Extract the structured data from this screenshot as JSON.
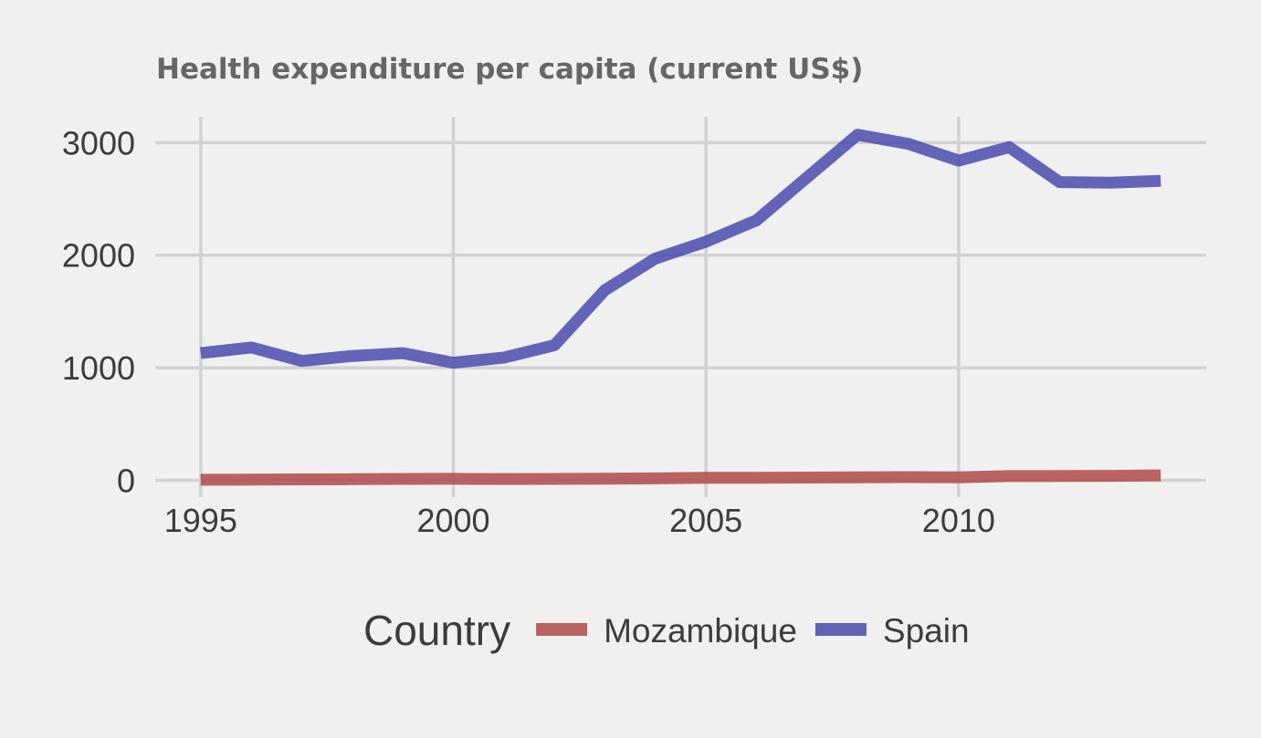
{
  "chart_data": {
    "type": "line",
    "title": "Health expenditure per capita (current US$)",
    "xlabel": "",
    "ylabel": "",
    "x_ticks": [
      1995,
      2000,
      2005,
      2010
    ],
    "y_ticks": [
      0,
      1000,
      2000,
      3000
    ],
    "xlim": [
      1994.1,
      2014.9
    ],
    "ylim": [
      -150,
      3230
    ],
    "grid": true,
    "legend": {
      "title": "Country",
      "position": "bottom"
    },
    "x": [
      1995,
      1996,
      1997,
      1998,
      1999,
      2000,
      2001,
      2002,
      2003,
      2004,
      2005,
      2006,
      2007,
      2008,
      2009,
      2010,
      2011,
      2012,
      2013,
      2014
    ],
    "series": [
      {
        "name": "Mozambique",
        "color": "#b04a4a",
        "values": [
          5,
          6,
          8,
          10,
          12,
          13,
          11,
          12,
          14,
          17,
          22,
          22,
          24,
          26,
          28,
          26,
          37,
          38,
          40,
          44
        ]
      },
      {
        "name": "Spain",
        "color": "#4a4aad",
        "values": [
          1130,
          1180,
          1060,
          1105,
          1130,
          1045,
          1090,
          1200,
          1690,
          1970,
          2120,
          2310,
          2690,
          3070,
          2990,
          2840,
          2960,
          2650,
          2645,
          2660
        ]
      }
    ]
  }
}
